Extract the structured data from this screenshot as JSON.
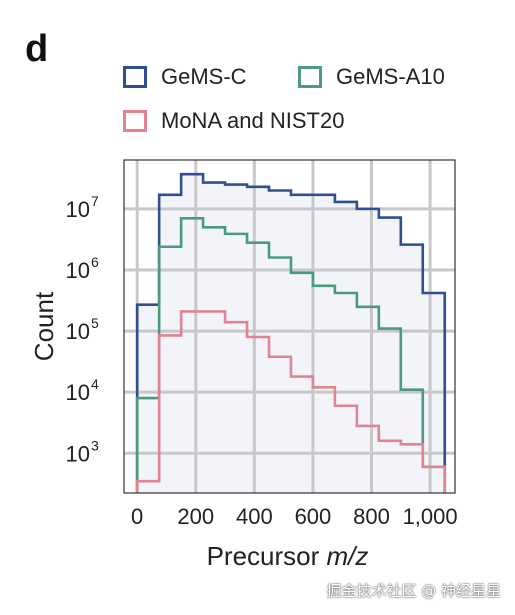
{
  "panel_letter": "d",
  "watermark": "掘金技术社区 @ 神经星星",
  "chart_data": {
    "type": "histogram-step",
    "xlabel_prefix": "Precursor ",
    "xlabel_italic": "m/z",
    "ylabel": "Count",
    "xlim": [
      -45,
      1085
    ],
    "ylim_log10": [
      2.35,
      7.8
    ],
    "y_scale": "log",
    "grid": true,
    "x_ticks": [
      {
        "value": 0,
        "label": "0"
      },
      {
        "value": 200,
        "label": "200"
      },
      {
        "value": 400,
        "label": "400"
      },
      {
        "value": 600,
        "label": "600"
      },
      {
        "value": 800,
        "label": "800"
      },
      {
        "value": 1000,
        "label": "1,000"
      }
    ],
    "y_ticks": [
      {
        "exp": 3,
        "base": "10",
        "sup": "3"
      },
      {
        "exp": 4,
        "base": "10",
        "sup": "4"
      },
      {
        "exp": 5,
        "base": "10",
        "sup": "5"
      },
      {
        "exp": 6,
        "base": "10",
        "sup": "6"
      },
      {
        "exp": 7,
        "base": "10",
        "sup": "7"
      }
    ],
    "legend_placement": "top",
    "series": [
      {
        "name": "GeMS-C",
        "color": "#2f4f94",
        "fill": "#f2f4fa",
        "edges": [
          0,
          75,
          150,
          225,
          300,
          375,
          450,
          525,
          600,
          675,
          750,
          825,
          900,
          975,
          1050
        ],
        "values": [
          270000,
          17000000,
          37000000,
          27000000,
          25000000,
          23000000,
          20000000,
          17000000,
          17000000,
          13000000,
          10000000,
          7200000,
          2600000,
          420000
        ]
      },
      {
        "name": "GeMS-A10",
        "color": "#4a9b7c",
        "fill": "none",
        "edges": [
          0,
          75,
          150,
          225,
          300,
          375,
          450,
          525,
          600,
          675,
          750,
          825,
          900,
          975,
          1050
        ],
        "values": [
          8000,
          2400000,
          7000000,
          5000000,
          3900000,
          2800000,
          1600000,
          900000,
          550000,
          420000,
          250000,
          110000,
          11000,
          600
        ]
      },
      {
        "name": "MoNA and NIST20",
        "color": "#e2848f",
        "fill": "none",
        "edges": [
          0,
          75,
          150,
          225,
          300,
          375,
          450,
          525,
          600,
          675,
          750,
          825,
          900,
          975,
          1050
        ],
        "values": [
          350,
          85000,
          210000,
          210000,
          140000,
          80000,
          38000,
          18000,
          12000,
          6000,
          2800,
          1600,
          1400,
          600
        ]
      }
    ]
  }
}
